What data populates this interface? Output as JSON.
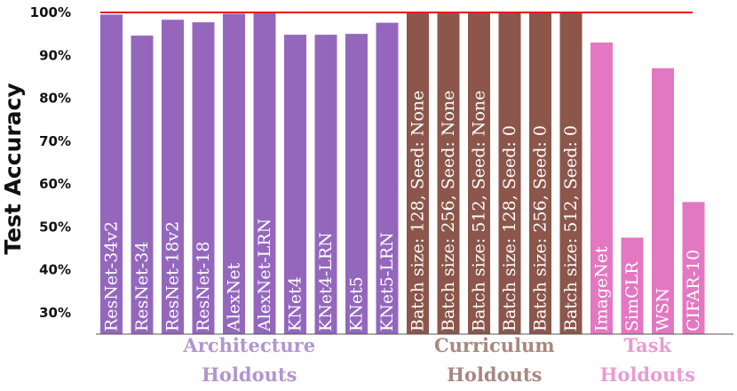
{
  "chart_data": {
    "type": "bar",
    "ylabel": "Test Accuracy",
    "ylim": [
      25,
      100
    ],
    "yticks": [
      "30%",
      "40%",
      "50%",
      "60%",
      "70%",
      "80%",
      "90%",
      "100%"
    ],
    "reference_line": 100,
    "reference_line_color": "#e41a1c",
    "categories": [
      "ResNet-34v2",
      "ResNet-34",
      "ResNet-18v2",
      "ResNet-18",
      "AlexNet",
      "AlexNet-LRN",
      "KNet4",
      "KNet4-LRN",
      "KNet5",
      "KNet5-LRN",
      "Batch size: 128, Seed: None",
      "Batch size: 256, Seed: None",
      "Batch size: 512, Seed: None",
      "Batch size: 128, Seed: 0",
      "Batch size: 256, Seed: 0",
      "Batch size: 512, Seed: 0",
      "ImageNet",
      "SimCLR",
      "WSN",
      "CIFAR-10"
    ],
    "values": [
      99.5,
      94.6,
      98.3,
      97.7,
      99.7,
      100,
      94.8,
      94.8,
      95.0,
      97.6,
      100,
      100,
      100,
      99.8,
      100,
      100,
      93.0,
      47.5,
      87.0,
      55.8
    ],
    "groups": [
      {
        "name": "Architecture Holdouts",
        "line1": "Architecture",
        "line2": "Holdouts",
        "start": 0,
        "end": 9,
        "color": "#9467bd",
        "label_color": "#b394cf"
      },
      {
        "name": "Curriculum Holdouts",
        "line1": "Curriculum",
        "line2": "Holdouts",
        "start": 10,
        "end": 15,
        "color": "#8c564b",
        "label_color": "#a98880"
      },
      {
        "name": "Task Holdouts",
        "line1": "Task",
        "line2": "Holdouts",
        "start": 16,
        "end": 19,
        "color": "#e377c2",
        "label_color": "#e99bd2"
      }
    ]
  }
}
